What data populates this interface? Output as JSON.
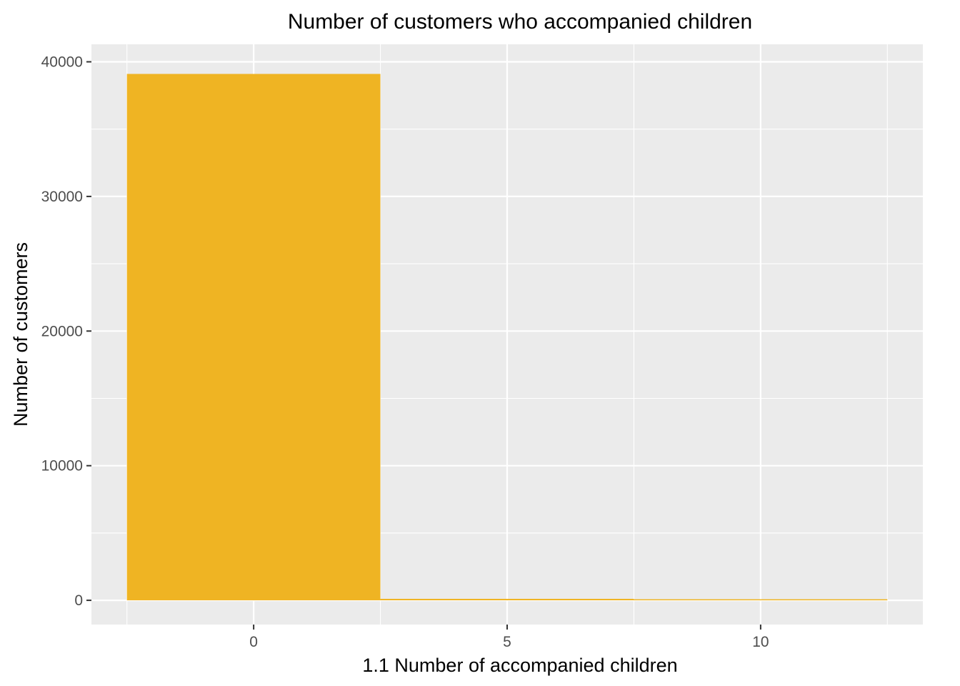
{
  "chart_data": {
    "type": "bar",
    "title": "Number of customers who accompanied children",
    "xlabel": "1.1 Number of accompanied children",
    "ylabel": "Number of customers",
    "bins": [
      {
        "x_start": -2.5,
        "x_end": 2.5,
        "value": 39100
      },
      {
        "x_start": 2.5,
        "x_end": 7.5,
        "value": 110
      },
      {
        "x_start": 7.5,
        "x_end": 12.5,
        "value": 30
      }
    ],
    "xlim": [
      -3.2,
      13.2
    ],
    "ylim": [
      -1800,
      41300
    ],
    "x_ticks": [
      0,
      5,
      10
    ],
    "x_tick_labels": [
      "0",
      "5",
      "10"
    ],
    "y_ticks": [
      0,
      10000,
      20000,
      30000,
      40000
    ],
    "y_tick_labels": [
      "0",
      "10000",
      "20000",
      "30000",
      "40000"
    ],
    "bar_color": "#EFB423",
    "panel_background": "#EBEBEB",
    "grid": true
  }
}
